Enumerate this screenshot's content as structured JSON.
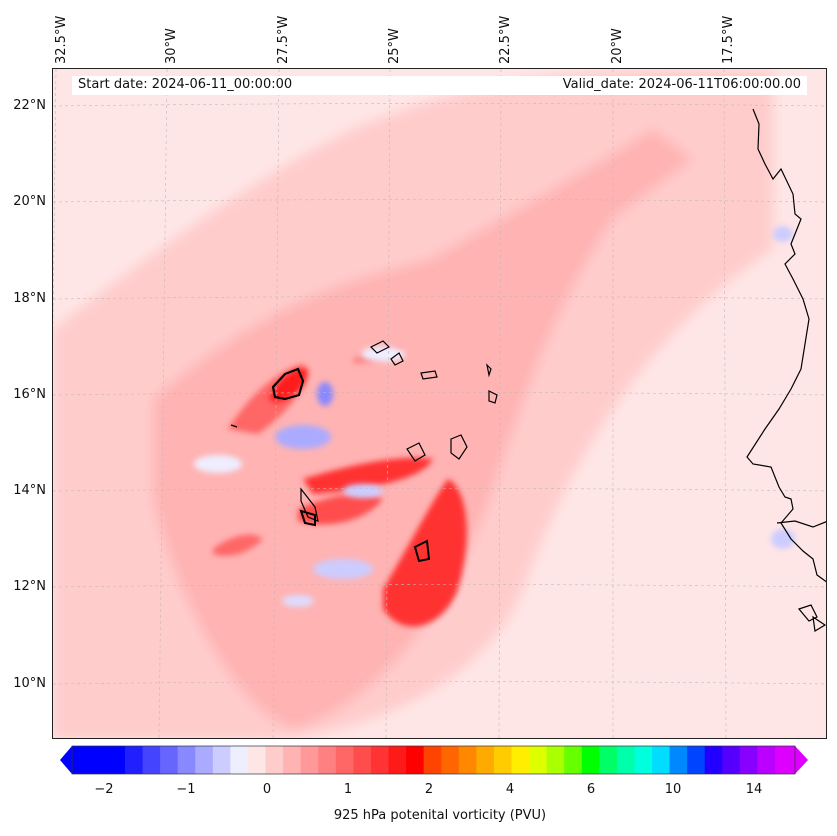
{
  "header": {
    "start_date": "Start date: 2024-06-11_00:00:00",
    "valid_date": "Valid_date: 2024-06-11T06:00:00.00"
  },
  "axes": {
    "lon_ticks": [
      "32.5°W",
      "30°W",
      "27.5°W",
      "25°W",
      "22.5°W",
      "20°W",
      "17.5°W"
    ],
    "lat_ticks": [
      "22°N",
      "20°N",
      "18°N",
      "16°N",
      "14°N",
      "12°N",
      "10°N"
    ]
  },
  "colorbar": {
    "label": "925 hPa potenital vorticity (PVU)",
    "ticks": [
      "−2",
      "−1",
      "0",
      "1",
      "2",
      "4",
      "6",
      "10",
      "14"
    ],
    "colors": [
      "#0000ff",
      "#2020ff",
      "#4444ff",
      "#6666ff",
      "#8888ff",
      "#aaaaff",
      "#ccccff",
      "#eeeeff",
      "#ffe6e6",
      "#ffcccc",
      "#ffb3b3",
      "#ff9999",
      "#ff8080",
      "#ff6666",
      "#ff4d4d",
      "#ff3333",
      "#ff1a1a",
      "#ff0000",
      "#ff4400",
      "#ff6600",
      "#ff8800",
      "#ffaa00",
      "#ffcc00",
      "#ffee00",
      "#ddff00",
      "#aaff00",
      "#66ff00",
      "#00ff00",
      "#00ff66",
      "#00ffaa",
      "#00ffdd",
      "#00ddff",
      "#0088ff",
      "#0044ff",
      "#2200ff",
      "#5500ff",
      "#8800ff",
      "#bb00ff",
      "#dd00ff"
    ]
  },
  "colors": {
    "background_pv": "#ffe6e6",
    "land_outline": "#000000"
  }
}
